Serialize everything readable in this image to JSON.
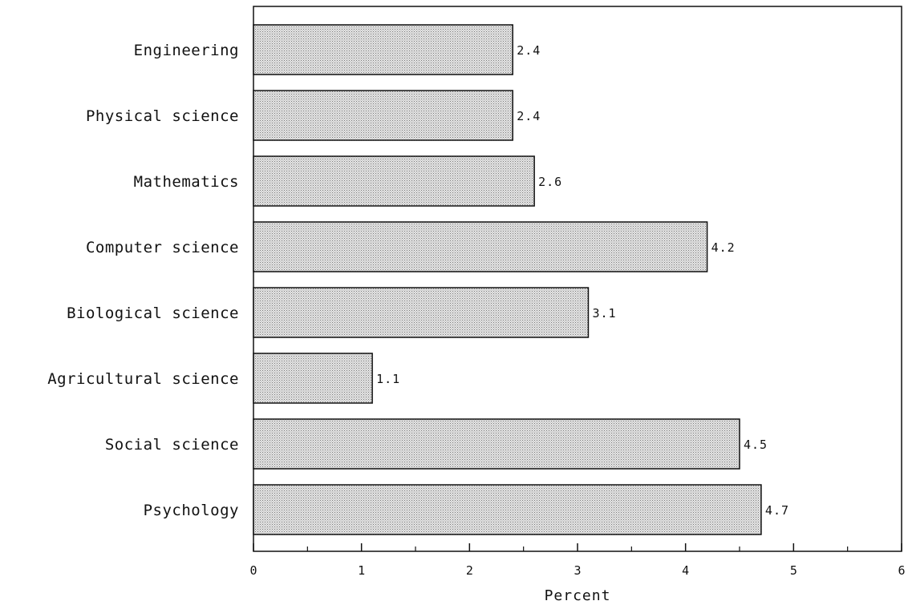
{
  "chart_data": {
    "type": "bar",
    "orientation": "horizontal",
    "categories": [
      "Engineering",
      "Physical science",
      "Mathematics",
      "Computer science",
      "Biological science",
      "Agricultural science",
      "Social science",
      "Psychology"
    ],
    "values": [
      2.4,
      2.4,
      2.6,
      4.2,
      3.1,
      1.1,
      4.5,
      4.7
    ],
    "value_labels": [
      "2.4",
      "2.4",
      "2.6",
      "4.2",
      "3.1",
      "1.1",
      "4.5",
      "4.7"
    ],
    "xlabel": "Percent",
    "ylabel": "",
    "title": "",
    "xlim": [
      0,
      6
    ],
    "xticks": [
      0,
      1,
      2,
      3,
      4,
      5,
      6
    ],
    "minor_xticks": [
      0.5,
      1.5,
      2.5,
      3.5,
      4.5,
      5.5
    ],
    "grid": false,
    "legend": "none",
    "colors": {
      "bar_fill": "#c9c9c9",
      "bar_stroke": "#111111",
      "axis": "#111111"
    }
  }
}
